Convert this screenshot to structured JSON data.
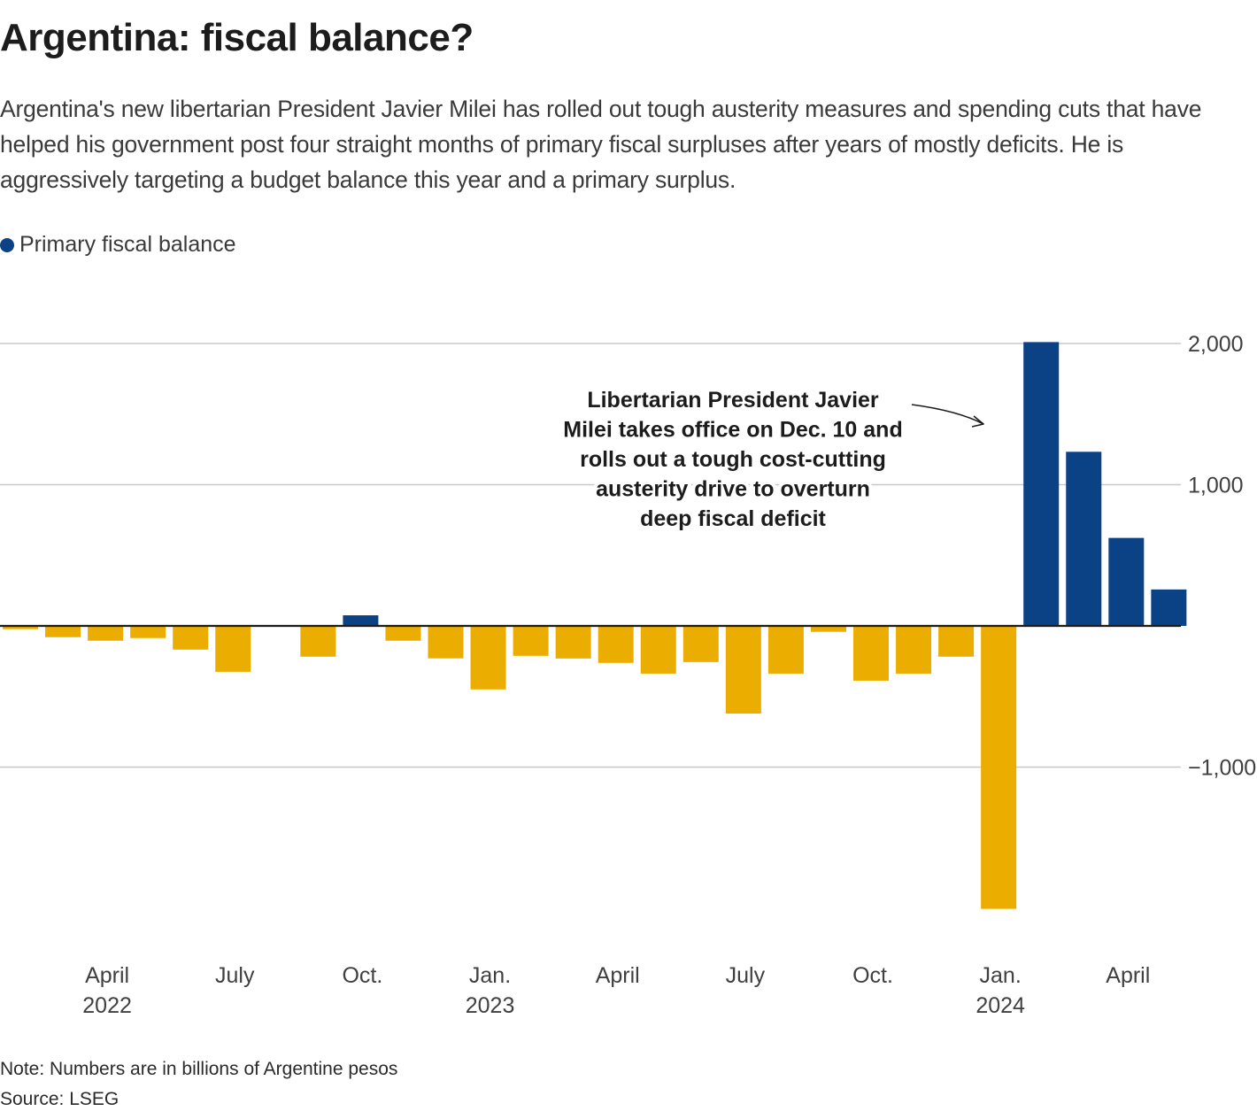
{
  "title": "Argentina: fiscal balance?",
  "subtitle": "Argentina's new libertarian President Javier Milei has rolled out tough austerity measures and spending cuts that have helped his government post four straight months of primary fiscal surpluses after years of mostly deficits. He is aggressively targeting a budget balance this year and a primary surplus.",
  "legend": {
    "label": "Primary fiscal balance",
    "color": "#0b4185"
  },
  "colors": {
    "positive": "#0b4185",
    "negative": "#eaad00",
    "grid": "#c8c8c8",
    "zero": "#1c1c1c"
  },
  "footer": {
    "note": "Note: Numbers are in billions of Argentine pesos",
    "source": "Source: LSEG"
  },
  "chart_data": {
    "type": "bar",
    "title": "Argentina: fiscal balance?",
    "xlabel": "",
    "ylabel": "",
    "units": "billions of Argentine pesos",
    "ylim": [
      -2100,
      2100
    ],
    "yticks": [
      2000,
      1000,
      -1000
    ],
    "ytick_labels": [
      "2,000",
      "1,000",
      "−1,000"
    ],
    "grid": true,
    "legend_position": "top-left",
    "categories": [
      "Feb 2022",
      "Mar 2022",
      "Apr 2022",
      "May 2022",
      "Jun 2022",
      "Jul 2022",
      "Aug 2022",
      "Sep 2022",
      "Oct 2022",
      "Nov 2022",
      "Dec 2022",
      "Jan 2023",
      "Feb 2023",
      "Mar 2023",
      "Apr 2023",
      "May 2023",
      "Jun 2023",
      "Jul 2023",
      "Aug 2023",
      "Sep 2023",
      "Oct 2023",
      "Nov 2023",
      "Dec 2023",
      "Jan 2024",
      "Feb 2024",
      "Mar 2024",
      "Apr 2024",
      "May 2024"
    ],
    "series": [
      {
        "name": "Primary fiscal balance",
        "values": [
          -23,
          -80,
          -105,
          -86,
          -168,
          -325,
          0,
          -218,
          75,
          -105,
          -230,
          -450,
          -212,
          -231,
          -262,
          -338,
          -256,
          -621,
          -338,
          -42,
          -388,
          -338,
          -218,
          -2004,
          2010,
          1233,
          623,
          258
        ]
      }
    ],
    "xticks": [
      {
        "index": 2,
        "line1": "April",
        "line2": "2022"
      },
      {
        "index": 5,
        "line1": "July",
        "line2": ""
      },
      {
        "index": 8,
        "line1": "Oct.",
        "line2": ""
      },
      {
        "index": 11,
        "line1": "Jan.",
        "line2": "2023"
      },
      {
        "index": 14,
        "line1": "April",
        "line2": ""
      },
      {
        "index": 17,
        "line1": "July",
        "line2": ""
      },
      {
        "index": 20,
        "line1": "Oct.",
        "line2": ""
      },
      {
        "index": 23,
        "line1": "Jan.",
        "line2": "2024"
      },
      {
        "index": 26,
        "line1": "April",
        "line2": ""
      }
    ],
    "annotation": {
      "lines": [
        "Libertarian President Javier",
        "Milei takes office on Dec. 10 and",
        "rolls out a tough cost-cutting",
        "austerity drive to overturn",
        "deep fiscal deficit"
      ],
      "points_to_index": 24
    }
  }
}
